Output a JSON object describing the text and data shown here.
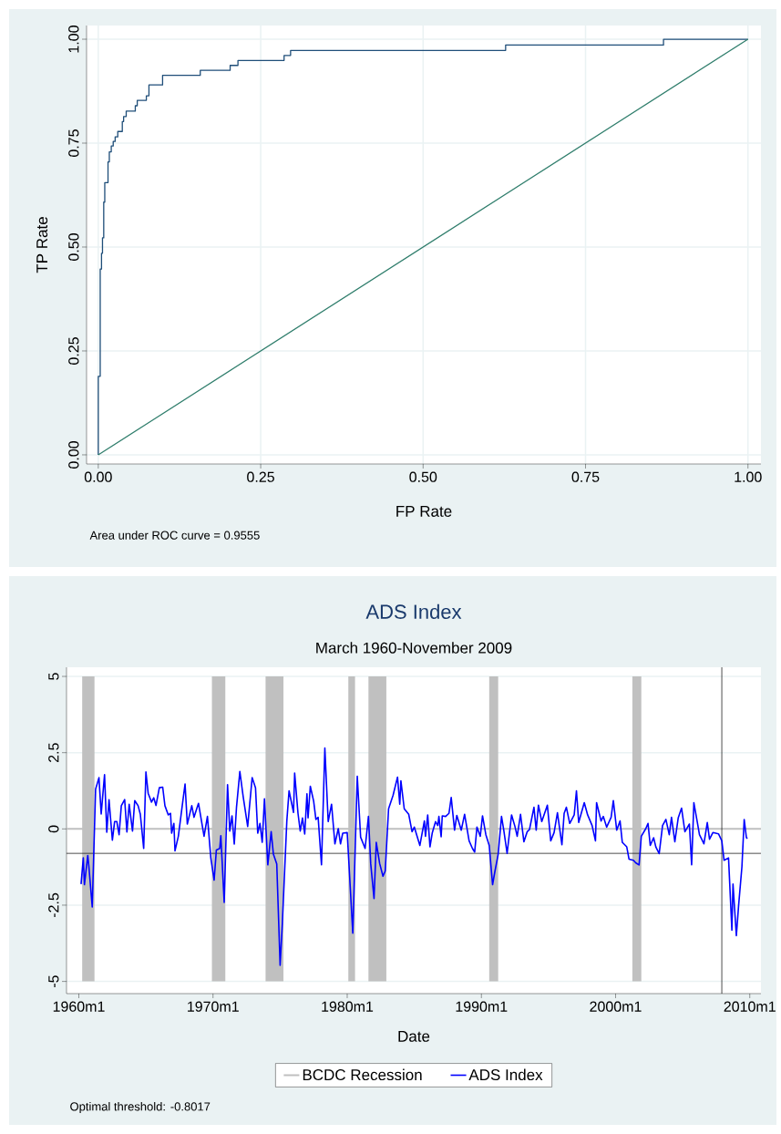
{
  "chart_data": [
    {
      "type": "step",
      "xlabel": "FP Rate",
      "ylabel": "TP Rate",
      "xlim": [
        -0.018,
        1.02
      ],
      "ylim": [
        -0.022,
        1.033
      ],
      "xticks": [
        {
          "value": 0,
          "label": "0.00"
        },
        {
          "value": 0.25,
          "label": "0.25"
        },
        {
          "value": 0.5,
          "label": "0.50"
        },
        {
          "value": 0.75,
          "label": "0.75"
        },
        {
          "value": 1,
          "label": "1.00"
        }
      ],
      "yticks": [
        {
          "value": 0,
          "label": "0.00"
        },
        {
          "value": 0.25,
          "label": "0.25"
        },
        {
          "value": 0.5,
          "label": "0.50"
        },
        {
          "value": 0.75,
          "label": "0.75"
        },
        {
          "value": 1,
          "label": "1.00"
        }
      ],
      "grid": true,
      "annotations": [
        "Area under ROC curve = 0.9555"
      ],
      "series": [
        {
          "type": "step",
          "color": "#1f4e79",
          "x": [
            0,
            0,
            0.003,
            0.005,
            0.0065,
            0.0084,
            0.01,
            0.015,
            0.017,
            0.02,
            0.023,
            0.026,
            0.03,
            0.037,
            0.039,
            0.043,
            0.057,
            0.06,
            0.074,
            0.078,
            0.099,
            0.157,
            0.203,
            0.215,
            0.286,
            0.296,
            0.627,
            0.87,
            1
          ],
          "values": [
            0,
            0.189,
            0.447,
            0.485,
            0.522,
            0.608,
            0.655,
            0.705,
            0.729,
            0.743,
            0.754,
            0.765,
            0.778,
            0.802,
            0.814,
            0.827,
            0.84,
            0.853,
            0.864,
            0.89,
            0.913,
            0.925,
            0.937,
            0.949,
            0.961,
            0.973,
            0.986,
            1,
            1
          ]
        },
        {
          "type": "line",
          "color": "#2e7d6b",
          "x": [
            0,
            1
          ],
          "values": [
            0,
            1
          ]
        }
      ]
    },
    {
      "type": "line",
      "title": "ADS Index",
      "subtitle": "March 1960-November 2009",
      "xlabel": "Date",
      "xlim": [
        "1959-02",
        "2010-11"
      ],
      "ylim": [
        -5.4,
        5.3
      ],
      "xticks": [
        {
          "value": "1960-01",
          "label": "1960m1"
        },
        {
          "value": "1970-01",
          "label": "1970m1"
        },
        {
          "value": "1980-01",
          "label": "1980m1"
        },
        {
          "value": "1990-01",
          "label": "1990m1"
        },
        {
          "value": "2000-01",
          "label": "2000m1"
        },
        {
          "value": "2010-01",
          "label": "2010m1"
        }
      ],
      "yticks": [
        -5,
        -2.5,
        0,
        2.5,
        5
      ],
      "grid": "y",
      "legend": "bottom",
      "annotations": [
        "Optimal threshold: -0.8017"
      ],
      "bands": [
        {
          "axis": "x",
          "from": "1960-04",
          "to": "1961-03",
          "label": "BCDC Recession",
          "color": "#c0c0c0"
        },
        {
          "axis": "x",
          "from": "1969-12",
          "to": "1970-12",
          "color": "#c0c0c0"
        },
        {
          "axis": "x",
          "from": "1973-12",
          "to": "1975-04",
          "color": "#c0c0c0"
        },
        {
          "axis": "x",
          "from": "1980-02",
          "to": "1980-08",
          "color": "#c0c0c0"
        },
        {
          "axis": "x",
          "from": "1981-08",
          "to": "1982-12",
          "color": "#c0c0c0"
        },
        {
          "axis": "x",
          "from": "1990-08",
          "to": "1991-04",
          "color": "#c0c0c0"
        },
        {
          "axis": "x",
          "from": "2001-04",
          "to": "2001-12",
          "color": "#c0c0c0"
        }
      ],
      "ref_lines": [
        {
          "axis": "y",
          "value": 0,
          "color": "#c0c0c0"
        },
        {
          "axis": "y",
          "value": -0.8017,
          "color": "#000000"
        },
        {
          "axis": "x",
          "value": "2007-12",
          "color": "#000000"
        }
      ],
      "series": [
        {
          "name": "ADS Index",
          "color": "#0000ff",
          "x": [
            "1960-03",
            "1960-05",
            "1960-06",
            "1960-09",
            "1960-10",
            "1961-01",
            "1961-04",
            "1961-07",
            "1961-09",
            "1961-12",
            "1962-02",
            "1962-04",
            "1962-07",
            "1962-09",
            "1962-11",
            "1963-01",
            "1963-03",
            "1963-06",
            "1963-08",
            "1963-10",
            "1964-01",
            "1964-03",
            "1964-06",
            "1964-08",
            "1964-11",
            "1965-01",
            "1965-03",
            "1965-06",
            "1965-08",
            "1965-10",
            "1966-01",
            "1966-04",
            "1966-06",
            "1966-09",
            "1966-11",
            "1966-12",
            "1967-02",
            "1967-03",
            "1967-06",
            "1967-10",
            "1967-12",
            "1968-02",
            "1968-06",
            "1968-08",
            "1968-12",
            "1969-05",
            "1969-08",
            "1969-11",
            "1970-02",
            "1970-04",
            "1970-07",
            "1970-08",
            "1970-11",
            "1971-02",
            "1971-04",
            "1971-06",
            "1971-08",
            "1971-10",
            "1972-01",
            "1972-04",
            "1972-08",
            "1972-12",
            "1973-03",
            "1973-05",
            "1973-07",
            "1973-09",
            "1973-11",
            "1974-02",
            "1974-05",
            "1974-07",
            "1974-10",
            "1975-01",
            "1975-03",
            "1975-07",
            "1975-09",
            "1976-01",
            "1976-02",
            "1976-05",
            "1976-07",
            "1976-09",
            "1976-11",
            "1977-01",
            "1977-02",
            "1977-04",
            "1977-07",
            "1977-09",
            "1977-11",
            "1978-02",
            "1978-05",
            "1978-08",
            "1978-11",
            "1979-02",
            "1979-05",
            "1979-07",
            "1979-09",
            "1980-01",
            "1980-06",
            "1980-10",
            "1981-01",
            "1981-05",
            "1981-08",
            "1981-10",
            "1982-01",
            "1982-03",
            "1982-06",
            "1982-09",
            "1982-11",
            "1983-02",
            "1983-06",
            "1983-10",
            "1983-12",
            "1984-01",
            "1984-04",
            "1984-08",
            "1984-11",
            "1985-01",
            "1985-06",
            "1985-10",
            "1985-11",
            "1986-01",
            "1986-03",
            "1986-05",
            "1986-08",
            "1986-10",
            "1986-11",
            "1987-01",
            "1987-02",
            "1987-05",
            "1987-08",
            "1987-10",
            "1988-01",
            "1988-03",
            "1988-07",
            "1988-10",
            "1989-02",
            "1989-05",
            "1989-07",
            "1989-09",
            "1989-12",
            "1990-02",
            "1990-05",
            "1990-08",
            "1990-11",
            "1991-01",
            "1991-04",
            "1991-07",
            "1991-09",
            "1991-12",
            "1992-04",
            "1992-07",
            "1992-09",
            "1992-12",
            "1993-03",
            "1993-06",
            "1993-08",
            "1993-12",
            "1994-02",
            "1994-04",
            "1994-07",
            "1994-12",
            "1995-03",
            "1995-06",
            "1995-09",
            "1996-01",
            "1996-03",
            "1996-05",
            "1996-08",
            "1996-12",
            "1997-02",
            "1997-04",
            "1997-09",
            "1997-12",
            "1998-04",
            "1998-07",
            "1998-08",
            "1998-12",
            "1999-02",
            "1999-05",
            "1999-09",
            "1999-11",
            "2000-02",
            "2000-05",
            "2000-07",
            "2000-11",
            "2001-01",
            "2001-05",
            "2001-07",
            "2001-10",
            "2001-12",
            "2002-04",
            "2002-06",
            "2002-08",
            "2002-11",
            "2003-01",
            "2003-04",
            "2003-07",
            "2003-10",
            "2004-01",
            "2004-03",
            "2004-06",
            "2004-09",
            "2004-12",
            "2005-03",
            "2005-07",
            "2005-09",
            "2005-11",
            "2006-02",
            "2006-04",
            "2006-08",
            "2006-11",
            "2007-01",
            "2007-04",
            "2007-09",
            "2007-12",
            "2008-02",
            "2008-06",
            "2008-09",
            "2008-10",
            "2009-01",
            "2009-03",
            "2009-06",
            "2009-08",
            "2009-10",
            "2009-11"
          ],
          "values": [
            -1.81,
            -0.95,
            -1.83,
            -0.87,
            -1.23,
            -2.56,
            1.3,
            1.68,
            0.49,
            1.78,
            -0.11,
            0.96,
            -0.37,
            0.24,
            0.24,
            -0.19,
            0.76,
            0.96,
            -0.1,
            0.81,
            -0.07,
            0.93,
            0.76,
            0.48,
            -0.64,
            1.87,
            1.17,
            0.88,
            1.02,
            0.77,
            1.35,
            1.37,
            0.76,
            0.46,
            0.51,
            -0.14,
            0.18,
            -0.72,
            -0.24,
            0.91,
            1.47,
            0.16,
            0.76,
            0.38,
            0.84,
            -0.24,
            0.41,
            -0.94,
            -1.68,
            -0.69,
            -0.64,
            -0.22,
            -2.41,
            1.45,
            -0.07,
            0.43,
            -0.5,
            0.71,
            1.88,
            1.05,
            0.08,
            1.68,
            1.35,
            -0.14,
            0.18,
            -0.44,
            0.99,
            -1.18,
            -0.09,
            -0.83,
            -1.15,
            -4.47,
            -3.1,
            0.26,
            1.25,
            0.54,
            1.83,
            0.51,
            -0.07,
            0.36,
            -0.17,
            1.15,
            0.36,
            1.4,
            0.91,
            0.31,
            0.38,
            -1.18,
            2.65,
            0.24,
            0.81,
            -0.49,
            0.01,
            -0.49,
            -0.14,
            -0.12,
            -3.42,
            1.73,
            -0.27,
            -0.64,
            0.41,
            -1.13,
            -2.28,
            -0.44,
            -1.13,
            -1.55,
            -1.38,
            0.66,
            1.1,
            1.7,
            0.81,
            1.58,
            0.66,
            0.48,
            -0.09,
            0.06,
            -0.54,
            0.26,
            -0.24,
            0.46,
            -0.59,
            -0.14,
            0.24,
            0.11,
            0.41,
            -0.26,
            0.43,
            0.41,
            0.51,
            1.03,
            -0.04,
            0.44,
            -0.04,
            0.48,
            -0.39,
            -0.64,
            -0.76,
            0.06,
            -0.24,
            0.43,
            -0.19,
            -0.54,
            -1.83,
            -1.41,
            -0.83,
            0.41,
            -0.04,
            -0.8,
            0.46,
            0.08,
            -0.24,
            0.48,
            -0.42,
            -0.09,
            -0.02,
            0.71,
            -0.04,
            0.78,
            0.24,
            0.78,
            -0.39,
            -0.12,
            0.53,
            -0.52,
            0.51,
            0.71,
            0.18,
            0.46,
            1.25,
            0.21,
            0.86,
            0.46,
            0.11,
            -0.39,
            0.86,
            0.26,
            0.41,
            0.06,
            0.38,
            0.93,
            -0.04,
            0.26,
            -0.44,
            -0.59,
            -0.99,
            -1.03,
            -1.11,
            -1.18,
            -0.24,
            0.01,
            0.18,
            -0.54,
            -0.29,
            -0.59,
            -0.81,
            0.11,
            0.31,
            -0.19,
            0.38,
            -0.42,
            0.36,
            0.68,
            -0.09,
            0.16,
            -1.18,
            0.86,
            0.24,
            -0.19,
            -0.49,
            0.21,
            -0.34,
            -0.12,
            -0.16,
            -0.39,
            -1.03,
            -0.95,
            -3.32,
            -1.81,
            -3.5,
            -2.52,
            -1.23,
            0.31,
            -0.29,
            -0.31
          ]
        }
      ]
    }
  ]
}
